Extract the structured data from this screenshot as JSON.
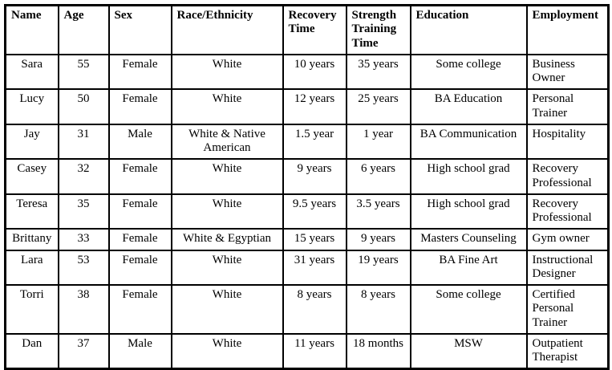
{
  "chart_data": {
    "type": "table",
    "title": "",
    "columns": [
      "Name",
      "Age",
      "Sex",
      "Race/Ethnicity",
      "Recovery Time",
      "Strength Training Time",
      "Education",
      "Employment"
    ],
    "rows": [
      [
        "Sara",
        "55",
        "Female",
        "White",
        "10 years",
        "35 years",
        "Some college",
        "Business Owner"
      ],
      [
        "Lucy",
        "50",
        "Female",
        "White",
        "12 years",
        "25 years",
        "BA Education",
        "Personal Trainer"
      ],
      [
        "Jay",
        "31",
        "Male",
        "White & Native American",
        "1.5 year",
        "1 year",
        "BA Communication",
        "Hospitality"
      ],
      [
        "Casey",
        "32",
        "Female",
        "White",
        "9 years",
        "6 years",
        "High school grad",
        "Recovery Professional"
      ],
      [
        "Teresa",
        "35",
        "Female",
        "White",
        "9.5 years",
        "3.5 years",
        "High school grad",
        "Recovery Professional"
      ],
      [
        "Brittany",
        "33",
        "Female",
        "White & Egyptian",
        "15 years",
        "9 years",
        "Masters Counseling",
        "Gym owner"
      ],
      [
        "Lara",
        "53",
        "Female",
        "White",
        "31 years",
        "19 years",
        "BA Fine Art",
        "Instructional Designer"
      ],
      [
        "Torri",
        "38",
        "Female",
        "White",
        "8 years",
        "8 years",
        "Some college",
        "Certified Personal Trainer"
      ],
      [
        "Dan",
        "37",
        "Male",
        "White",
        "11 years",
        "18 months",
        "MSW",
        "Outpatient Therapist"
      ]
    ]
  },
  "colors": {
    "border": "#000000",
    "text": "#000000",
    "background": "#ffffff"
  }
}
